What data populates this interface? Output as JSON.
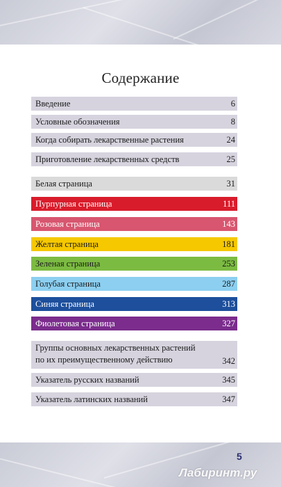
{
  "title": "Содержание",
  "page_number": "5",
  "watermark": "Лабиринт.ру",
  "entries": [
    {
      "label": "Введение",
      "page": "6",
      "color": "#d6d3de"
    },
    {
      "label": "Условные обозначения",
      "page": "8",
      "color": "#d6d3de"
    },
    {
      "label": "Когда собирать лекарственные растения",
      "page": "24",
      "color": "#d6d3de"
    },
    {
      "label": "Приготовление лекарственных средств",
      "page": "25",
      "color": "#d6d3de"
    },
    {
      "label": "Белая страница",
      "page": "31",
      "color": "#dadada"
    },
    {
      "label": "Пурпурная страница",
      "page": "111",
      "color": "#d91c2b"
    },
    {
      "label": "Розовая страница",
      "page": "143",
      "color": "#d8566f"
    },
    {
      "label": "Желтая страница",
      "page": "181",
      "color": "#f5c800"
    },
    {
      "label": "Зеленая страница",
      "page": "253",
      "color": "#7cbb42"
    },
    {
      "label": "Голубая страница",
      "page": "287",
      "color": "#8ccff0"
    },
    {
      "label": "Синяя страница",
      "page": "313",
      "color": "#1d4f9c"
    },
    {
      "label": "Фиолетовая страница",
      "page": "327",
      "color": "#7b2c8d"
    },
    {
      "label_line1": "Группы основных лекарственных растений",
      "label_line2": "по их преимущественному действию",
      "page": "342",
      "color": "#d6d3de"
    },
    {
      "label": "Указатель русских названий",
      "page": "345",
      "color": "#d6d3de"
    },
    {
      "label": "Указатель латинских названий",
      "page": "347",
      "color": "#d6d3de"
    }
  ]
}
